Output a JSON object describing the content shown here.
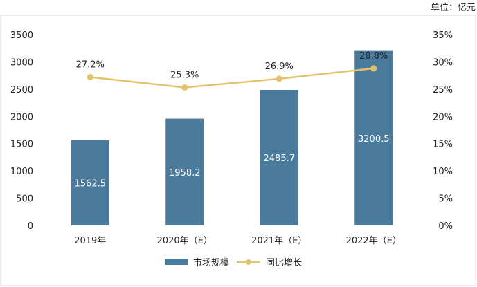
{
  "unit_label": "单位：亿元",
  "colors": {
    "bar": "#4a7a9c",
    "line": "#e0c36a"
  },
  "chart_data": {
    "type": "bar",
    "categories": [
      "2019年",
      "2020年（E）",
      "2021年（E）",
      "2022年（E）"
    ],
    "series": [
      {
        "name": "市场规模",
        "type": "bar",
        "axis": "left",
        "values": [
          1562.5,
          1958.2,
          2485.7,
          3200.5
        ],
        "labels": [
          "1562.5",
          "1958.2",
          "2485.7",
          "3200.5"
        ]
      },
      {
        "name": "同比增长",
        "type": "line",
        "axis": "right",
        "values": [
          27.2,
          25.3,
          26.9,
          28.8
        ],
        "labels": [
          "27.2%",
          "25.3%",
          "26.9%",
          "28.8%"
        ]
      }
    ],
    "left_axis": {
      "ylim": [
        0,
        3500
      ],
      "ticks": [
        "0",
        "500",
        "1000",
        "1500",
        "2000",
        "2500",
        "3000",
        "3500"
      ]
    },
    "right_axis": {
      "ylim": [
        0,
        35
      ],
      "ticks": [
        "0%",
        "5%",
        "10%",
        "15%",
        "20%",
        "25%",
        "30%",
        "35%"
      ]
    },
    "grid": false,
    "legend_position": "bottom"
  }
}
